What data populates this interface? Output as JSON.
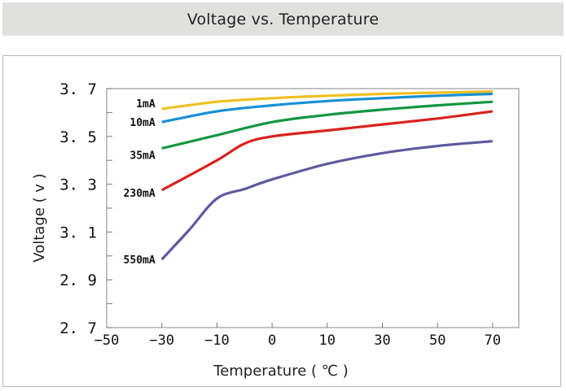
{
  "header": {
    "title": "Voltage vs. Temperature"
  },
  "chart_data": {
    "type": "line",
    "title": "Voltage vs. Temperature",
    "xlabel": "Temperature ( ℃ )",
    "ylabel": "Voltage ( v )",
    "x_categories": [
      "-50",
      "-30",
      "-10",
      "0",
      "10",
      "30",
      "50",
      "70"
    ],
    "x_scale": "categorical (equally spaced ticks)",
    "y_ticks": [
      "3. 7",
      "3. 5",
      "3. 3",
      "3. 1",
      "2. 9",
      "2. 7"
    ],
    "y_tick_values": [
      3.7,
      3.5,
      3.3,
      3.1,
      2.9,
      2.7
    ],
    "ylim": [
      2.7,
      3.7
    ],
    "grid": false,
    "legend": "inline labels at left end of each curve",
    "series": [
      {
        "name": "1mA",
        "label": "1mA",
        "color": "#f0c020",
        "points": [
          [
            -30,
            3.615
          ],
          [
            -10,
            3.645
          ],
          [
            0,
            3.66
          ],
          [
            10,
            3.67
          ],
          [
            30,
            3.678
          ],
          [
            50,
            3.683
          ],
          [
            70,
            3.688
          ]
        ]
      },
      {
        "name": "10mA",
        "label": "10mA",
        "color": "#1a8fd6",
        "points": [
          [
            -30,
            3.56
          ],
          [
            -10,
            3.605
          ],
          [
            0,
            3.63
          ],
          [
            10,
            3.648
          ],
          [
            30,
            3.66
          ],
          [
            50,
            3.67
          ],
          [
            70,
            3.678
          ]
        ]
      },
      {
        "name": "35mA",
        "label": "35mA",
        "color": "#129640",
        "points": [
          [
            -30,
            3.45
          ],
          [
            -10,
            3.505
          ],
          [
            0,
            3.56
          ],
          [
            10,
            3.59
          ],
          [
            30,
            3.612
          ],
          [
            50,
            3.63
          ],
          [
            70,
            3.645
          ]
        ]
      },
      {
        "name": "230mA",
        "label": "230mA",
        "color": "#d8221e",
        "points": [
          [
            -30,
            3.275
          ],
          [
            -10,
            3.4
          ],
          [
            -5,
            3.47
          ],
          [
            0,
            3.5
          ],
          [
            10,
            3.525
          ],
          [
            30,
            3.55
          ],
          [
            50,
            3.575
          ],
          [
            70,
            3.605
          ]
        ]
      },
      {
        "name": "550mA",
        "label": "550mA",
        "color": "#5e5a9e",
        "points": [
          [
            -30,
            2.985
          ],
          [
            -20,
            3.11
          ],
          [
            -10,
            3.24
          ],
          [
            -5,
            3.28
          ],
          [
            0,
            3.32
          ],
          [
            10,
            3.385
          ],
          [
            30,
            3.43
          ],
          [
            50,
            3.46
          ],
          [
            70,
            3.48
          ]
        ]
      }
    ]
  }
}
